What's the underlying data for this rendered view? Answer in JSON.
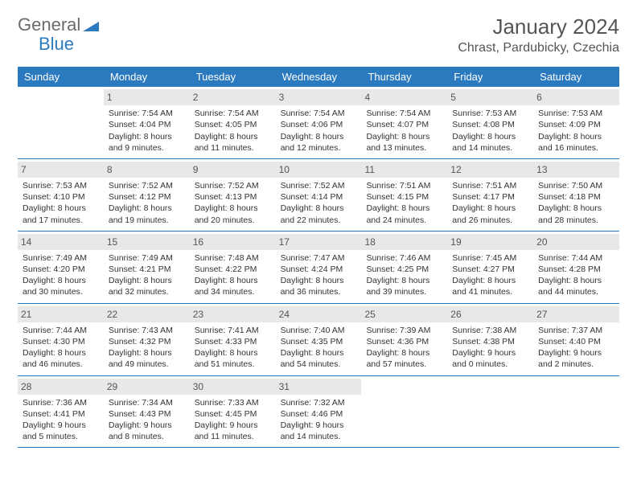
{
  "brand": {
    "part1": "General",
    "part2": "Blue"
  },
  "title": {
    "month": "January 2024",
    "location": "Chrast, Pardubicky, Czechia"
  },
  "colors": {
    "header_bg": "#2b7abf",
    "header_text": "#ffffff",
    "daynum_bg": "#e8e8e8",
    "border": "#2b7abf",
    "text": "#333333"
  },
  "week_days": [
    "Sunday",
    "Monday",
    "Tuesday",
    "Wednesday",
    "Thursday",
    "Friday",
    "Saturday"
  ],
  "weeks": [
    [
      {
        "day": "",
        "sunrise": "",
        "sunset": "",
        "daylight1": "",
        "daylight2": ""
      },
      {
        "day": "1",
        "sunrise": "Sunrise: 7:54 AM",
        "sunset": "Sunset: 4:04 PM",
        "daylight1": "Daylight: 8 hours",
        "daylight2": "and 9 minutes."
      },
      {
        "day": "2",
        "sunrise": "Sunrise: 7:54 AM",
        "sunset": "Sunset: 4:05 PM",
        "daylight1": "Daylight: 8 hours",
        "daylight2": "and 11 minutes."
      },
      {
        "day": "3",
        "sunrise": "Sunrise: 7:54 AM",
        "sunset": "Sunset: 4:06 PM",
        "daylight1": "Daylight: 8 hours",
        "daylight2": "and 12 minutes."
      },
      {
        "day": "4",
        "sunrise": "Sunrise: 7:54 AM",
        "sunset": "Sunset: 4:07 PM",
        "daylight1": "Daylight: 8 hours",
        "daylight2": "and 13 minutes."
      },
      {
        "day": "5",
        "sunrise": "Sunrise: 7:53 AM",
        "sunset": "Sunset: 4:08 PM",
        "daylight1": "Daylight: 8 hours",
        "daylight2": "and 14 minutes."
      },
      {
        "day": "6",
        "sunrise": "Sunrise: 7:53 AM",
        "sunset": "Sunset: 4:09 PM",
        "daylight1": "Daylight: 8 hours",
        "daylight2": "and 16 minutes."
      }
    ],
    [
      {
        "day": "7",
        "sunrise": "Sunrise: 7:53 AM",
        "sunset": "Sunset: 4:10 PM",
        "daylight1": "Daylight: 8 hours",
        "daylight2": "and 17 minutes."
      },
      {
        "day": "8",
        "sunrise": "Sunrise: 7:52 AM",
        "sunset": "Sunset: 4:12 PM",
        "daylight1": "Daylight: 8 hours",
        "daylight2": "and 19 minutes."
      },
      {
        "day": "9",
        "sunrise": "Sunrise: 7:52 AM",
        "sunset": "Sunset: 4:13 PM",
        "daylight1": "Daylight: 8 hours",
        "daylight2": "and 20 minutes."
      },
      {
        "day": "10",
        "sunrise": "Sunrise: 7:52 AM",
        "sunset": "Sunset: 4:14 PM",
        "daylight1": "Daylight: 8 hours",
        "daylight2": "and 22 minutes."
      },
      {
        "day": "11",
        "sunrise": "Sunrise: 7:51 AM",
        "sunset": "Sunset: 4:15 PM",
        "daylight1": "Daylight: 8 hours",
        "daylight2": "and 24 minutes."
      },
      {
        "day": "12",
        "sunrise": "Sunrise: 7:51 AM",
        "sunset": "Sunset: 4:17 PM",
        "daylight1": "Daylight: 8 hours",
        "daylight2": "and 26 minutes."
      },
      {
        "day": "13",
        "sunrise": "Sunrise: 7:50 AM",
        "sunset": "Sunset: 4:18 PM",
        "daylight1": "Daylight: 8 hours",
        "daylight2": "and 28 minutes."
      }
    ],
    [
      {
        "day": "14",
        "sunrise": "Sunrise: 7:49 AM",
        "sunset": "Sunset: 4:20 PM",
        "daylight1": "Daylight: 8 hours",
        "daylight2": "and 30 minutes."
      },
      {
        "day": "15",
        "sunrise": "Sunrise: 7:49 AM",
        "sunset": "Sunset: 4:21 PM",
        "daylight1": "Daylight: 8 hours",
        "daylight2": "and 32 minutes."
      },
      {
        "day": "16",
        "sunrise": "Sunrise: 7:48 AM",
        "sunset": "Sunset: 4:22 PM",
        "daylight1": "Daylight: 8 hours",
        "daylight2": "and 34 minutes."
      },
      {
        "day": "17",
        "sunrise": "Sunrise: 7:47 AM",
        "sunset": "Sunset: 4:24 PM",
        "daylight1": "Daylight: 8 hours",
        "daylight2": "and 36 minutes."
      },
      {
        "day": "18",
        "sunrise": "Sunrise: 7:46 AM",
        "sunset": "Sunset: 4:25 PM",
        "daylight1": "Daylight: 8 hours",
        "daylight2": "and 39 minutes."
      },
      {
        "day": "19",
        "sunrise": "Sunrise: 7:45 AM",
        "sunset": "Sunset: 4:27 PM",
        "daylight1": "Daylight: 8 hours",
        "daylight2": "and 41 minutes."
      },
      {
        "day": "20",
        "sunrise": "Sunrise: 7:44 AM",
        "sunset": "Sunset: 4:28 PM",
        "daylight1": "Daylight: 8 hours",
        "daylight2": "and 44 minutes."
      }
    ],
    [
      {
        "day": "21",
        "sunrise": "Sunrise: 7:44 AM",
        "sunset": "Sunset: 4:30 PM",
        "daylight1": "Daylight: 8 hours",
        "daylight2": "and 46 minutes."
      },
      {
        "day": "22",
        "sunrise": "Sunrise: 7:43 AM",
        "sunset": "Sunset: 4:32 PM",
        "daylight1": "Daylight: 8 hours",
        "daylight2": "and 49 minutes."
      },
      {
        "day": "23",
        "sunrise": "Sunrise: 7:41 AM",
        "sunset": "Sunset: 4:33 PM",
        "daylight1": "Daylight: 8 hours",
        "daylight2": "and 51 minutes."
      },
      {
        "day": "24",
        "sunrise": "Sunrise: 7:40 AM",
        "sunset": "Sunset: 4:35 PM",
        "daylight1": "Daylight: 8 hours",
        "daylight2": "and 54 minutes."
      },
      {
        "day": "25",
        "sunrise": "Sunrise: 7:39 AM",
        "sunset": "Sunset: 4:36 PM",
        "daylight1": "Daylight: 8 hours",
        "daylight2": "and 57 minutes."
      },
      {
        "day": "26",
        "sunrise": "Sunrise: 7:38 AM",
        "sunset": "Sunset: 4:38 PM",
        "daylight1": "Daylight: 9 hours",
        "daylight2": "and 0 minutes."
      },
      {
        "day": "27",
        "sunrise": "Sunrise: 7:37 AM",
        "sunset": "Sunset: 4:40 PM",
        "daylight1": "Daylight: 9 hours",
        "daylight2": "and 2 minutes."
      }
    ],
    [
      {
        "day": "28",
        "sunrise": "Sunrise: 7:36 AM",
        "sunset": "Sunset: 4:41 PM",
        "daylight1": "Daylight: 9 hours",
        "daylight2": "and 5 minutes."
      },
      {
        "day": "29",
        "sunrise": "Sunrise: 7:34 AM",
        "sunset": "Sunset: 4:43 PM",
        "daylight1": "Daylight: 9 hours",
        "daylight2": "and 8 minutes."
      },
      {
        "day": "30",
        "sunrise": "Sunrise: 7:33 AM",
        "sunset": "Sunset: 4:45 PM",
        "daylight1": "Daylight: 9 hours",
        "daylight2": "and 11 minutes."
      },
      {
        "day": "31",
        "sunrise": "Sunrise: 7:32 AM",
        "sunset": "Sunset: 4:46 PM",
        "daylight1": "Daylight: 9 hours",
        "daylight2": "and 14 minutes."
      },
      {
        "day": "",
        "sunrise": "",
        "sunset": "",
        "daylight1": "",
        "daylight2": ""
      },
      {
        "day": "",
        "sunrise": "",
        "sunset": "",
        "daylight1": "",
        "daylight2": ""
      },
      {
        "day": "",
        "sunrise": "",
        "sunset": "",
        "daylight1": "",
        "daylight2": ""
      }
    ]
  ]
}
